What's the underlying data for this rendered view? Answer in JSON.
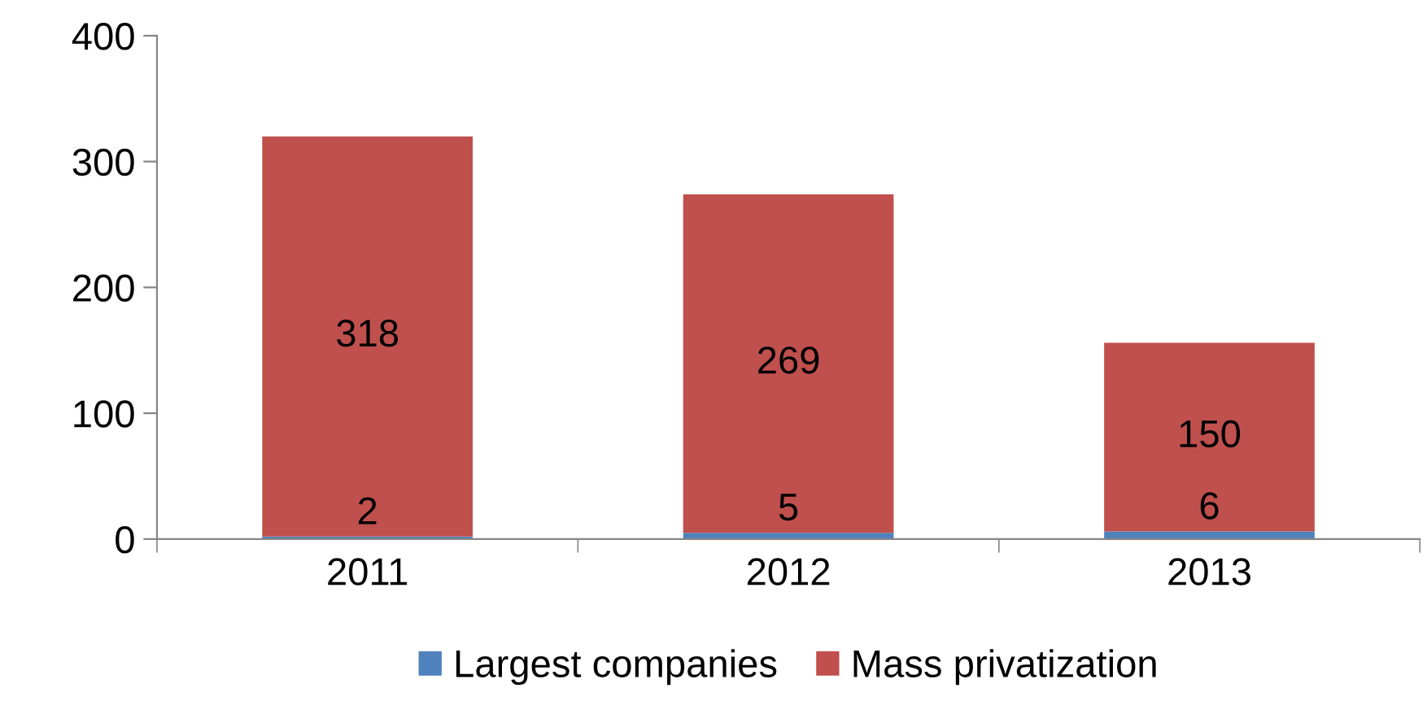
{
  "chart_data": {
    "type": "bar",
    "stacked": true,
    "categories": [
      "2011",
      "2012",
      "2013"
    ],
    "series": [
      {
        "name": "Largest companies",
        "color": "#4f81bd",
        "values": [
          2,
          5,
          6
        ]
      },
      {
        "name": "Mass privatization",
        "color": "#c0504d",
        "values": [
          318,
          269,
          150
        ]
      }
    ],
    "ylim": [
      0,
      400
    ],
    "yticks": [
      0,
      100,
      200,
      300,
      400
    ],
    "grid": false,
    "legend": "bottom",
    "data_labels": true
  }
}
